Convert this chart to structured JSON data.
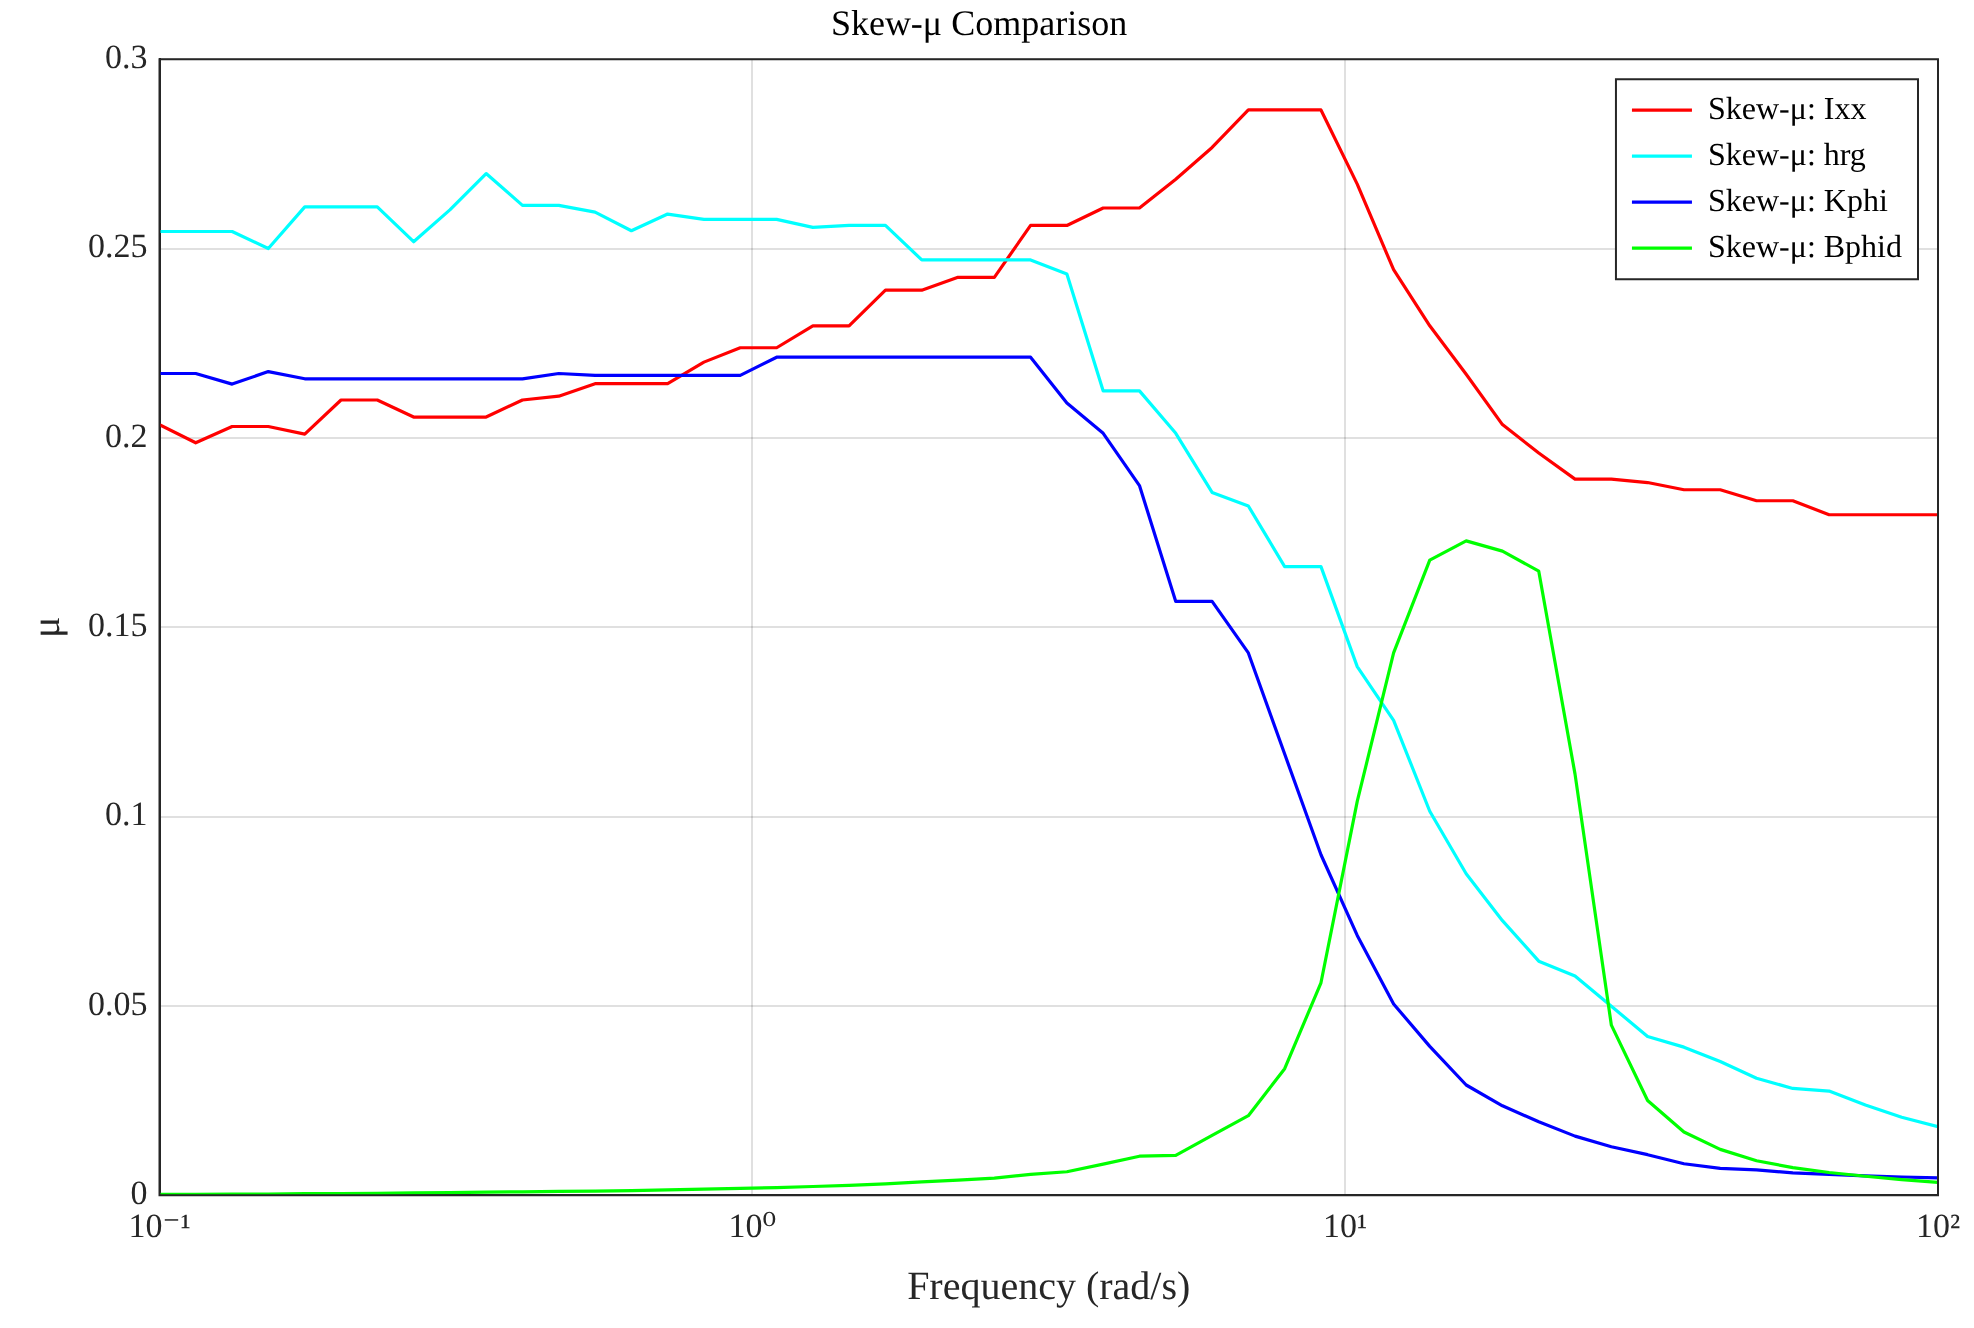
{
  "chart_data": {
    "type": "line",
    "title": "Skew-μ Comparison",
    "xlabel": "Frequency (rad/s)",
    "ylabel": "μ",
    "x": [
      0.1,
      0.1151,
      0.1326,
      0.1526,
      0.1758,
      0.2024,
      0.233,
      0.2683,
      0.3089,
      0.3556,
      0.4095,
      0.4715,
      0.5429,
      0.6251,
      0.7197,
      0.8286,
      0.9541,
      1.099,
      1.265,
      1.456,
      1.677,
      1.931,
      2.223,
      2.56,
      2.947,
      3.393,
      3.907,
      4.498,
      5.179,
      5.964,
      6.866,
      7.906,
      9.103,
      10.48,
      12.07,
      13.89,
      16,
      18.42,
      21.21,
      24.42,
      28.12,
      32.37,
      37.28,
      42.92,
      49.42,
      56.9,
      65.51,
      75.43,
      86.85,
      100
    ],
    "series": [
      {
        "name": "Skew-μ: Ixx",
        "color": "#ff0000",
        "values": [
          0.2035,
          0.1987,
          0.203,
          0.203,
          0.201,
          0.21,
          0.21,
          0.2055,
          0.2055,
          0.2055,
          0.21,
          0.211,
          0.2143,
          0.2143,
          0.2143,
          0.22,
          0.2238,
          0.2238,
          0.2296,
          0.2296,
          0.239,
          0.239,
          0.2424,
          0.2424,
          0.2561,
          0.2561,
          0.2607,
          0.2607,
          0.2683,
          0.2767,
          0.2866,
          0.2866,
          0.2866,
          0.267,
          0.2444,
          0.2296,
          0.2168,
          0.2035,
          0.196,
          0.1891,
          0.1891,
          0.1882,
          0.1863,
          0.1863,
          0.1834,
          0.1834,
          0.1797,
          0.1797,
          0.1797,
          0.1797
        ]
      },
      {
        "name": "Skew-μ: hrg",
        "color": "#00ffff",
        "values": [
          0.2545,
          0.2545,
          0.2545,
          0.25,
          0.261,
          0.261,
          0.261,
          0.2518,
          0.2602,
          0.2698,
          0.2614,
          0.2614,
          0.2596,
          0.2547,
          0.2591,
          0.2577,
          0.2577,
          0.2577,
          0.2556,
          0.2561,
          0.2561,
          0.247,
          0.247,
          0.247,
          0.247,
          0.2433,
          0.2124,
          0.2124,
          0.2012,
          0.1856,
          0.182,
          0.166,
          0.166,
          0.1396,
          0.1254,
          0.1014,
          0.0849,
          0.0725,
          0.0618,
          0.0579,
          0.0499,
          0.0419,
          0.0391,
          0.0353,
          0.0309,
          0.0282,
          0.0275,
          0.0238,
          0.0206,
          0.0181
        ]
      },
      {
        "name": "Skew-μ: Kphi",
        "color": "#0000ff",
        "values": [
          0.217,
          0.217,
          0.2142,
          0.2175,
          0.2156,
          0.2156,
          0.2156,
          0.2156,
          0.2156,
          0.2156,
          0.2156,
          0.217,
          0.2165,
          0.2165,
          0.2165,
          0.2165,
          0.2165,
          0.2213,
          0.2213,
          0.2213,
          0.2213,
          0.2213,
          0.2213,
          0.2213,
          0.2213,
          0.2092,
          0.2012,
          0.1874,
          0.1568,
          0.1568,
          0.1432,
          0.1165,
          0.0899,
          0.0686,
          0.0505,
          0.0393,
          0.0291,
          0.0236,
          0.0194,
          0.0156,
          0.0128,
          0.0107,
          0.0083,
          0.0071,
          0.0067,
          0.0059,
          0.0055,
          0.0051,
          0.0048,
          0.0046
        ]
      },
      {
        "name": "Skew-μ: Bphid",
        "color": "#00ff00",
        "values": [
          0.0002,
          0.0002,
          0.0003,
          0.0003,
          0.0004,
          0.0004,
          0.0005,
          0.0006,
          0.0007,
          0.0008,
          0.0009,
          0.001,
          0.0011,
          0.0012,
          0.0014,
          0.0016,
          0.0018,
          0.002,
          0.0023,
          0.0026,
          0.003,
          0.0035,
          0.004,
          0.0045,
          0.0055,
          0.0062,
          0.0082,
          0.0103,
          0.0105,
          0.0158,
          0.021,
          0.0334,
          0.0561,
          0.104,
          0.1432,
          0.1677,
          0.1728,
          0.1701,
          0.1648,
          0.1112,
          0.0449,
          0.025,
          0.0167,
          0.0121,
          0.0091,
          0.0073,
          0.006,
          0.005,
          0.0041,
          0.0034
        ]
      }
    ],
    "log": "x",
    "xlim": [
      0.1,
      100
    ],
    "xticks": [
      {
        "value": 0.1,
        "label": "10⁻¹"
      },
      {
        "value": 1,
        "label": "10⁰"
      },
      {
        "value": 10,
        "label": "10¹"
      },
      {
        "value": 100,
        "label": "10²"
      }
    ],
    "ylim": [
      0,
      0.3
    ],
    "yticks": [
      0,
      0.05,
      0.1,
      0.15,
      0.2,
      0.25,
      0.3
    ],
    "grid": true,
    "legend": "top right",
    "marker": "none",
    "line_style": "solid"
  }
}
